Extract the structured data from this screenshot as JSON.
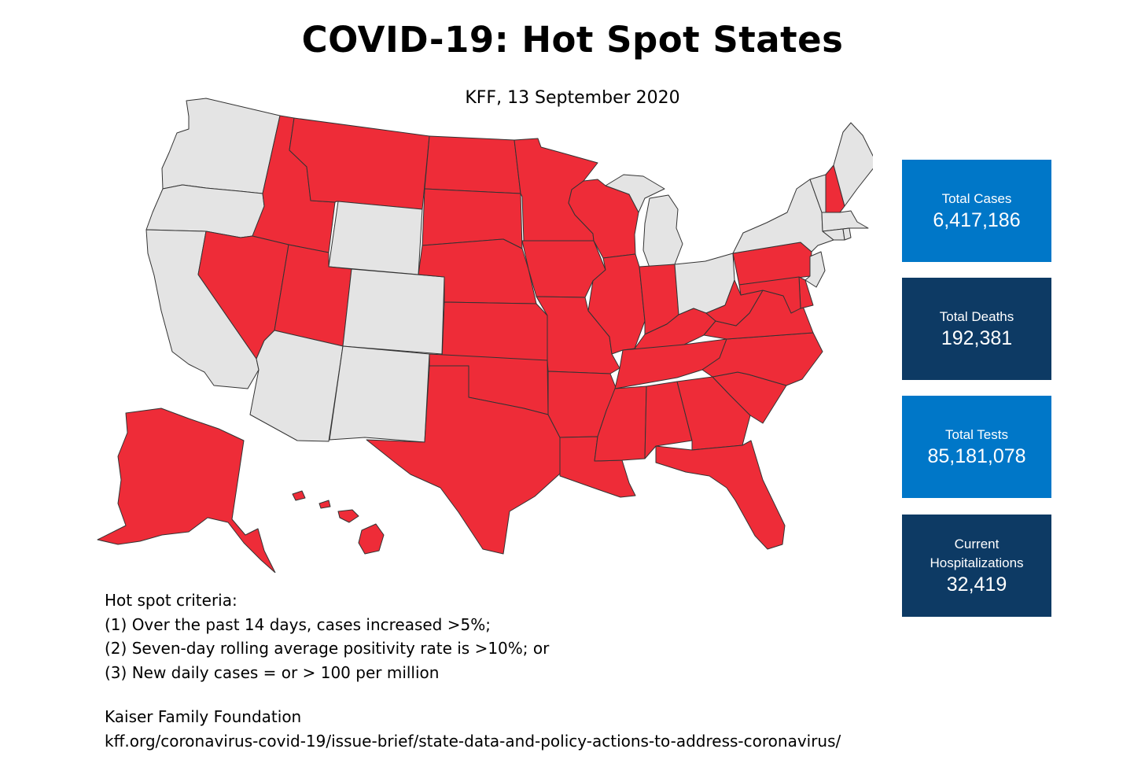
{
  "header": {
    "title": "COVID-19: Hot Spot States",
    "subtitle": "KFF, 13 September 2020"
  },
  "colors": {
    "hot_spot": "#ee2c38",
    "not_hot_spot": "#e4e4e4",
    "border": "#333333",
    "stat_light": "#0077c8",
    "stat_dark": "#0d3a64"
  },
  "map": {
    "states": [
      {
        "id": "WA",
        "hot": false
      },
      {
        "id": "OR",
        "hot": false
      },
      {
        "id": "CA",
        "hot": false
      },
      {
        "id": "ID",
        "hot": true
      },
      {
        "id": "NV",
        "hot": true
      },
      {
        "id": "MT",
        "hot": true
      },
      {
        "id": "WY",
        "hot": false
      },
      {
        "id": "UT",
        "hot": true
      },
      {
        "id": "CO",
        "hot": false
      },
      {
        "id": "AZ",
        "hot": false
      },
      {
        "id": "NM",
        "hot": false
      },
      {
        "id": "ND",
        "hot": true
      },
      {
        "id": "SD",
        "hot": true
      },
      {
        "id": "NE",
        "hot": true
      },
      {
        "id": "KS",
        "hot": true
      },
      {
        "id": "OK",
        "hot": true
      },
      {
        "id": "TX",
        "hot": true
      },
      {
        "id": "MN",
        "hot": true
      },
      {
        "id": "IA",
        "hot": true
      },
      {
        "id": "MO",
        "hot": true
      },
      {
        "id": "AR",
        "hot": true
      },
      {
        "id": "LA",
        "hot": true
      },
      {
        "id": "WI",
        "hot": true
      },
      {
        "id": "IL",
        "hot": true
      },
      {
        "id": "MI",
        "hot": false
      },
      {
        "id": "IN",
        "hot": true
      },
      {
        "id": "OH",
        "hot": false
      },
      {
        "id": "KY",
        "hot": true
      },
      {
        "id": "TN",
        "hot": true
      },
      {
        "id": "MS",
        "hot": true
      },
      {
        "id": "AL",
        "hot": true
      },
      {
        "id": "GA",
        "hot": true
      },
      {
        "id": "FL",
        "hot": true
      },
      {
        "id": "SC",
        "hot": true
      },
      {
        "id": "NC",
        "hot": true
      },
      {
        "id": "VA",
        "hot": true
      },
      {
        "id": "WV",
        "hot": true
      },
      {
        "id": "PA",
        "hot": true
      },
      {
        "id": "NY",
        "hot": false
      },
      {
        "id": "VT",
        "hot": false
      },
      {
        "id": "NH",
        "hot": true
      },
      {
        "id": "ME",
        "hot": false
      },
      {
        "id": "MA",
        "hot": false
      },
      {
        "id": "CT",
        "hot": false
      },
      {
        "id": "RI",
        "hot": false
      },
      {
        "id": "NJ",
        "hot": false
      },
      {
        "id": "DE",
        "hot": true
      },
      {
        "id": "MD",
        "hot": true
      },
      {
        "id": "AK",
        "hot": true
      },
      {
        "id": "HI",
        "hot": true
      }
    ]
  },
  "stats": [
    {
      "label": "Total Cases",
      "value": "6,417,186",
      "style": "light"
    },
    {
      "label": "Total Deaths",
      "value": "192,381",
      "style": "dark"
    },
    {
      "label": "Total Tests",
      "value": "85,181,078",
      "style": "light"
    },
    {
      "label": "Current Hospitalizations",
      "value": "32,419",
      "style": "dark"
    }
  ],
  "criteria": {
    "heading": "Hot spot criteria:",
    "items": [
      "(1) Over the past 14 days, cases increased >5%;",
      "(2) Seven-day rolling average positivity rate is >10%; or",
      "(3) New daily cases = or > 100 per million"
    ]
  },
  "source": {
    "name": "Kaiser Family Foundation",
    "url": "kff.org/coronavirus-covid-19/issue-brief/state-data-and-policy-actions-to-address-coronavirus/"
  }
}
